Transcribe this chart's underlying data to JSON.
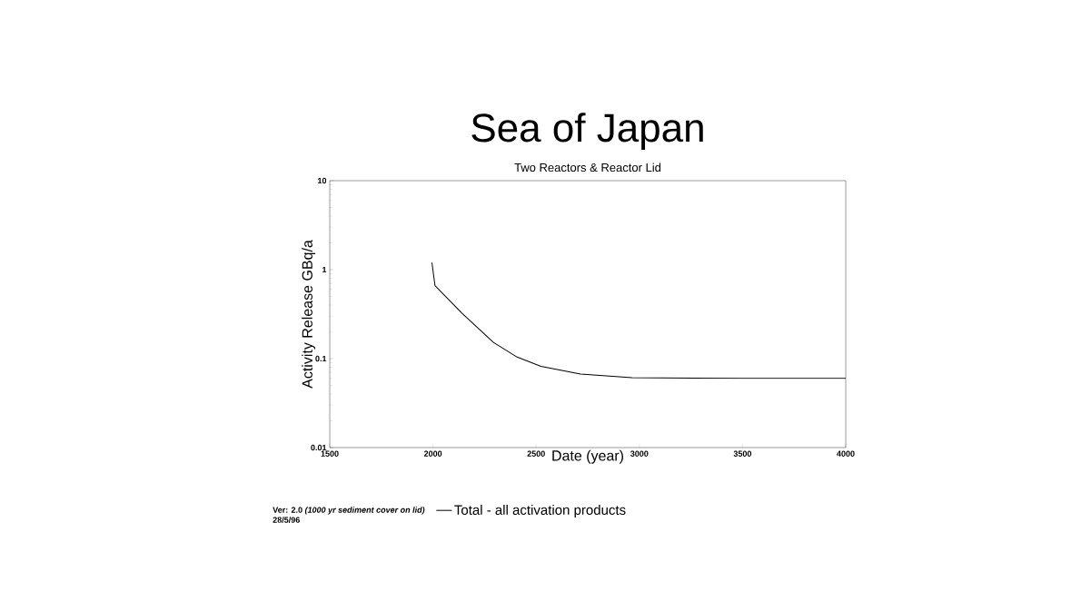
{
  "chart_data": {
    "type": "line",
    "title": "Sea of Japan",
    "subtitle": "Two Reactors & Reactor Lid",
    "xlabel": "Date (year)",
    "ylabel": "Activity  Release GBq/a",
    "x": [
      1995,
      2010,
      2140,
      2293,
      2408,
      2523,
      2715,
      2964,
      3500,
      4000
    ],
    "series": [
      {
        "name": "Total - all activation products",
        "color": "#000000",
        "values": [
          1.2,
          0.66,
          0.325,
          0.152,
          0.104,
          0.082,
          0.067,
          0.061,
          0.06,
          0.06
        ]
      }
    ],
    "xlim": [
      1500,
      4000
    ],
    "xticks": [
      1500,
      2000,
      2500,
      3000,
      3500,
      4000
    ],
    "ylim": [
      0.01,
      10
    ],
    "yticks": [
      0.01,
      0.1,
      1,
      10
    ],
    "log": "y",
    "grid": false,
    "legend": "bottom",
    "marker": "none",
    "line_style": "solid",
    "annotations": [
      "Ver: 2.0 *(1000 yr sediment cover on lid)*",
      "28/5/96"
    ]
  }
}
